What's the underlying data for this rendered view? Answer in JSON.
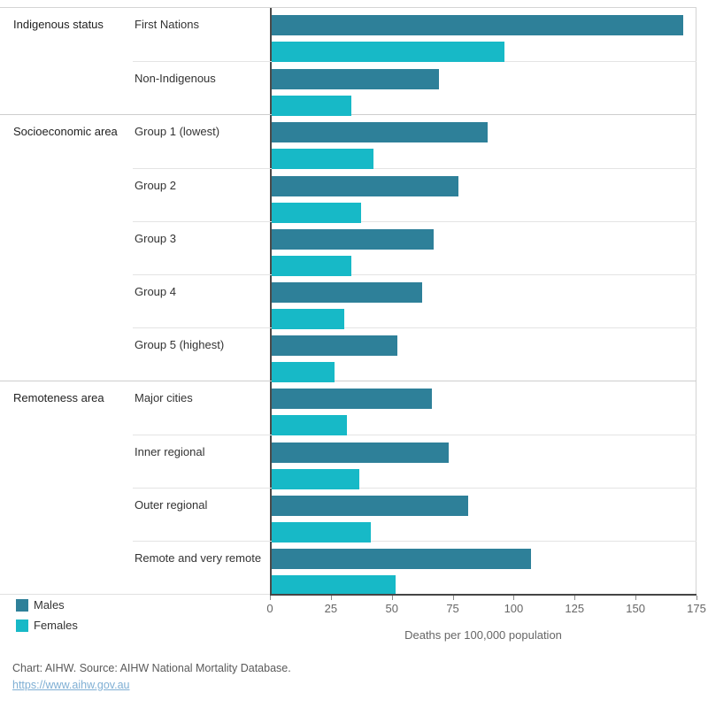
{
  "chart_data": {
    "type": "bar",
    "orientation": "horizontal",
    "xlabel": "Deaths per 100,000 population",
    "xlim": [
      0,
      175
    ],
    "x_tick_labels": [
      "0",
      "25",
      "50",
      "75",
      "100",
      "125",
      "150",
      "175"
    ],
    "grid": false,
    "legend_position": "bottom-left",
    "colors": {
      "males": "#2e8099",
      "females": "#17b9c7"
    },
    "legend": {
      "males": "Males",
      "females": "Females"
    },
    "groups": [
      {
        "label": "Indigenous status",
        "rows": [
          {
            "label": "First Nations",
            "males": 170,
            "females": 96
          },
          {
            "label": "Non-Indigenous",
            "males": 69,
            "females": 33
          }
        ]
      },
      {
        "label": "Socioeconomic area",
        "rows": [
          {
            "label": "Group 1 (lowest)",
            "males": 89,
            "females": 42
          },
          {
            "label": "Group 2",
            "males": 77,
            "females": 37
          },
          {
            "label": "Group 3",
            "males": 67,
            "females": 33
          },
          {
            "label": "Group 4",
            "males": 62,
            "females": 30
          },
          {
            "label": "Group 5 (highest)",
            "males": 52,
            "females": 26
          }
        ]
      },
      {
        "label": "Remoteness area",
        "rows": [
          {
            "label": "Major cities",
            "males": 66,
            "females": 31
          },
          {
            "label": "Inner regional",
            "males": 73,
            "females": 36
          },
          {
            "label": "Outer regional",
            "males": 81,
            "females": 41
          },
          {
            "label": "Remote and very remote",
            "males": 107,
            "females": 51
          }
        ]
      }
    ]
  },
  "footer": {
    "credit": "Chart: AIHW. Source: AIHW National Mortality Database.",
    "link": "https://www.aihw.gov.au"
  }
}
